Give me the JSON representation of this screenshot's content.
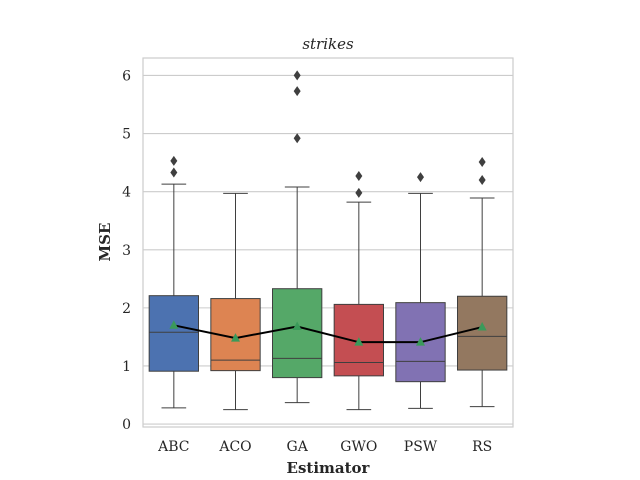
{
  "chart_data": {
    "type": "boxplot",
    "title": "strikes",
    "xlabel": "Estimator",
    "ylabel": "MSE",
    "ylim": [
      -0.05,
      6.3
    ],
    "yticks": [
      0,
      1,
      2,
      3,
      4,
      5,
      6
    ],
    "grid": true,
    "categories": [
      "ABC",
      "ACO",
      "GA",
      "GWO",
      "PSW",
      "RS"
    ],
    "colors": [
      "#4c72b0",
      "#dd8452",
      "#55a868",
      "#c44e52",
      "#8172b3",
      "#937860"
    ],
    "boxes": [
      {
        "name": "ABC",
        "whisker_low": 0.28,
        "q1": 0.91,
        "median": 1.58,
        "q3": 2.21,
        "whisker_high": 4.13,
        "mean": 1.7,
        "outliers": [
          4.33,
          4.53
        ]
      },
      {
        "name": "ACO",
        "whisker_low": 0.25,
        "q1": 0.92,
        "median": 1.1,
        "q3": 2.16,
        "whisker_high": 3.97,
        "mean": 1.48,
        "outliers": []
      },
      {
        "name": "GA",
        "whisker_low": 0.37,
        "q1": 0.8,
        "median": 1.13,
        "q3": 2.33,
        "whisker_high": 4.08,
        "mean": 1.68,
        "outliers": [
          4.92,
          5.73,
          6.0
        ]
      },
      {
        "name": "GWO",
        "whisker_low": 0.25,
        "q1": 0.83,
        "median": 1.06,
        "q3": 2.06,
        "whisker_high": 3.82,
        "mean": 1.41,
        "outliers": [
          3.98,
          4.27
        ]
      },
      {
        "name": "PSW",
        "whisker_low": 0.27,
        "q1": 0.73,
        "median": 1.08,
        "q3": 2.09,
        "whisker_high": 3.97,
        "mean": 1.41,
        "outliers": [
          4.25
        ]
      },
      {
        "name": "RS",
        "whisker_low": 0.3,
        "q1": 0.93,
        "median": 1.51,
        "q3": 2.2,
        "whisker_high": 3.89,
        "mean": 1.67,
        "outliers": [
          4.2,
          4.51
        ]
      }
    ],
    "mean_line": true,
    "mean_marker_color": "#3a9a5a"
  }
}
